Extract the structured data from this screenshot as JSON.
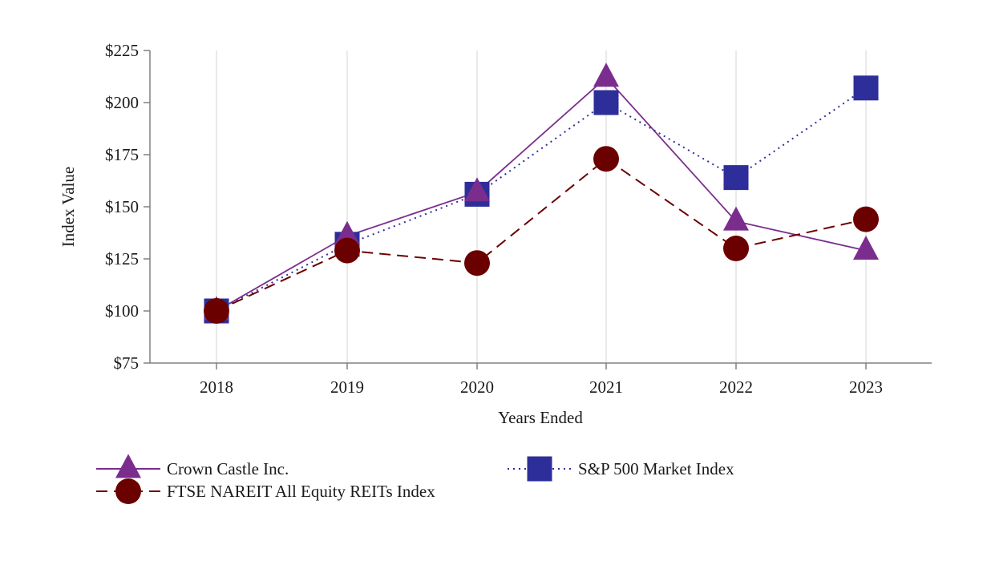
{
  "chart_data": {
    "type": "line",
    "title": "",
    "xlabel": "Years Ended",
    "ylabel": "Index Value",
    "categories": [
      "2018",
      "2019",
      "2020",
      "2021",
      "2022",
      "2023"
    ],
    "ylim": [
      75,
      225
    ],
    "yticks": [
      75,
      100,
      125,
      150,
      175,
      200,
      225
    ],
    "ytick_labels": [
      "$75",
      "$100",
      "$125",
      "$150",
      "$175",
      "$200",
      "$225"
    ],
    "grid": "vertical",
    "legend_position": "bottom",
    "series": [
      {
        "name": "Crown Castle Inc.",
        "values": [
          100,
          136,
          157,
          212,
          143,
          129
        ],
        "color": "#7b2d8e",
        "marker": "triangle",
        "line_style": "solid"
      },
      {
        "name": "S&P 500 Market Index",
        "values": [
          100,
          132,
          156,
          200,
          164,
          207
        ],
        "color": "#2e2e9a",
        "marker": "square",
        "line_style": "dotted"
      },
      {
        "name": "FTSE NAREIT All Equity REITs Index",
        "values": [
          100,
          129,
          123,
          173,
          130,
          144
        ],
        "color": "#6b0000",
        "marker": "circle",
        "line_style": "dashed"
      }
    ]
  }
}
